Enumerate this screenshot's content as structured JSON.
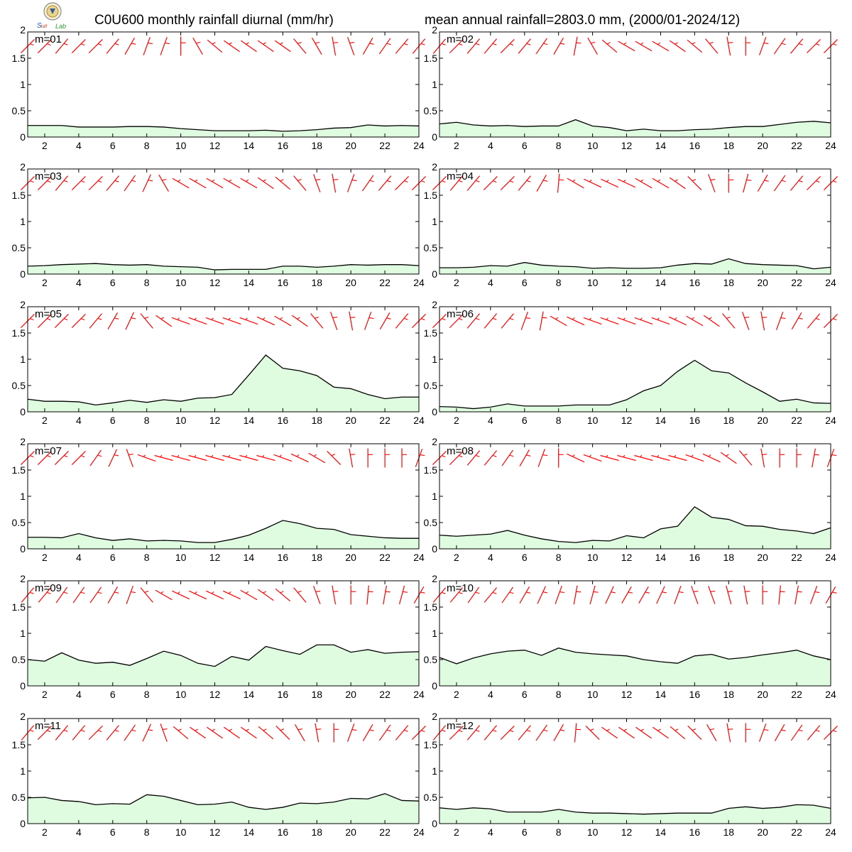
{
  "header": {
    "title_left": "C0U600 monthly rainfall diurnal (mm/hr)",
    "title_right": "mean annual rainfall=2803.0 mm, (2000/01-2024/12)",
    "logo_text": "Lab"
  },
  "colors": {
    "fill": "#e0fce0",
    "line": "#000000",
    "wind": "#ff0000",
    "frame": "#000000"
  },
  "chart_data": {
    "type": "area",
    "x": [
      1,
      2,
      3,
      4,
      5,
      6,
      7,
      8,
      9,
      10,
      11,
      12,
      13,
      14,
      15,
      16,
      17,
      18,
      19,
      20,
      21,
      22,
      23,
      24
    ],
    "x_ticks": [
      2,
      4,
      6,
      8,
      10,
      12,
      14,
      16,
      18,
      20,
      22,
      24
    ],
    "y_ticks": [
      0,
      0.5,
      1,
      1.5,
      2
    ],
    "y_tick_labels": [
      "0",
      "0.5",
      "1",
      "1.5",
      "2"
    ],
    "ylim": [
      0,
      2
    ],
    "xlim": [
      1,
      24
    ],
    "panels": [
      {
        "label": "m=01",
        "values": [
          0.22,
          0.22,
          0.22,
          0.19,
          0.19,
          0.19,
          0.2,
          0.2,
          0.19,
          0.16,
          0.14,
          0.12,
          0.12,
          0.12,
          0.13,
          0.11,
          0.12,
          0.14,
          0.17,
          0.18,
          0.23,
          0.21,
          0.22,
          0.21
        ],
        "wind_angles": [
          -45,
          -45,
          -40,
          -45,
          -45,
          -40,
          -30,
          -20,
          -20,
          0,
          30,
          50,
          55,
          55,
          55,
          55,
          40,
          30,
          10,
          20,
          -30,
          -35,
          -40,
          -40
        ]
      },
      {
        "label": "m=02",
        "values": [
          0.25,
          0.28,
          0.23,
          0.21,
          0.22,
          0.2,
          0.21,
          0.21,
          0.33,
          0.21,
          0.18,
          0.12,
          0.15,
          0.12,
          0.12,
          0.14,
          0.15,
          0.18,
          0.2,
          0.2,
          0.24,
          0.28,
          0.3,
          0.27
        ],
        "wind_angles": [
          -40,
          -45,
          -40,
          -40,
          -45,
          -40,
          -35,
          -30,
          -10,
          30,
          50,
          60,
          60,
          60,
          55,
          50,
          40,
          10,
          0,
          -20,
          -35,
          -40,
          -45,
          -45
        ]
      },
      {
        "label": "m=03",
        "values": [
          0.15,
          0.16,
          0.18,
          0.19,
          0.2,
          0.18,
          0.17,
          0.18,
          0.15,
          0.14,
          0.13,
          0.08,
          0.09,
          0.09,
          0.09,
          0.15,
          0.15,
          0.13,
          0.15,
          0.18,
          0.17,
          0.18,
          0.18,
          0.16
        ],
        "wind_angles": [
          -45,
          -45,
          -40,
          -45,
          -45,
          -40,
          -35,
          -25,
          30,
          60,
          60,
          60,
          60,
          60,
          55,
          50,
          40,
          20,
          10,
          -20,
          -35,
          -40,
          -45,
          -45
        ]
      },
      {
        "label": "m=04",
        "values": [
          0.12,
          0.12,
          0.13,
          0.16,
          0.15,
          0.22,
          0.17,
          0.15,
          0.14,
          0.11,
          0.12,
          0.11,
          0.11,
          0.12,
          0.17,
          0.2,
          0.19,
          0.29,
          0.2,
          0.18,
          0.17,
          0.16,
          0.1,
          0.13
        ],
        "wind_angles": [
          -45,
          -40,
          -40,
          -45,
          -45,
          -40,
          -30,
          -5,
          60,
          65,
          65,
          65,
          60,
          60,
          55,
          45,
          20,
          0,
          -15,
          -30,
          -35,
          -40,
          -45,
          -45
        ]
      },
      {
        "label": "m=05",
        "values": [
          0.24,
          0.2,
          0.2,
          0.19,
          0.13,
          0.17,
          0.22,
          0.18,
          0.23,
          0.2,
          0.26,
          0.27,
          0.33,
          0.7,
          1.08,
          0.83,
          0.78,
          0.69,
          0.47,
          0.44,
          0.33,
          0.25,
          0.28,
          0.28
        ],
        "wind_angles": [
          -45,
          -45,
          -45,
          -45,
          -40,
          -30,
          -25,
          40,
          55,
          70,
          70,
          70,
          70,
          70,
          65,
          60,
          55,
          40,
          20,
          10,
          -20,
          -30,
          -40,
          -45
        ]
      },
      {
        "label": "m=06",
        "values": [
          0.1,
          0.09,
          0.06,
          0.09,
          0.15,
          0.11,
          0.11,
          0.11,
          0.13,
          0.13,
          0.13,
          0.23,
          0.4,
          0.5,
          0.77,
          0.98,
          0.78,
          0.74,
          0.55,
          0.38,
          0.2,
          0.24,
          0.17,
          0.16
        ],
        "wind_angles": [
          -45,
          -45,
          -40,
          -40,
          -40,
          -20,
          -10,
          60,
          65,
          70,
          70,
          70,
          70,
          70,
          65,
          60,
          55,
          40,
          20,
          10,
          -20,
          -30,
          -40,
          -45
        ]
      },
      {
        "label": "m=07",
        "values": [
          0.22,
          0.22,
          0.21,
          0.29,
          0.21,
          0.16,
          0.19,
          0.15,
          0.16,
          0.15,
          0.12,
          0.12,
          0.18,
          0.26,
          0.39,
          0.54,
          0.48,
          0.39,
          0.37,
          0.27,
          0.24,
          0.21,
          0.2,
          0.2
        ],
        "wind_angles": [
          -45,
          -45,
          -45,
          -45,
          -35,
          -25,
          20,
          70,
          75,
          75,
          75,
          75,
          75,
          75,
          75,
          70,
          65,
          60,
          45,
          10,
          0,
          0,
          0,
          -20
        ]
      },
      {
        "label": "m=08",
        "values": [
          0.26,
          0.24,
          0.26,
          0.28,
          0.35,
          0.26,
          0.19,
          0.14,
          0.12,
          0.16,
          0.15,
          0.25,
          0.21,
          0.38,
          0.43,
          0.8,
          0.6,
          0.56,
          0.44,
          0.43,
          0.37,
          0.34,
          0.29,
          0.4
        ],
        "wind_angles": [
          -45,
          -45,
          -40,
          -40,
          -35,
          -30,
          -20,
          0,
          65,
          70,
          75,
          75,
          75,
          75,
          75,
          70,
          65,
          55,
          40,
          10,
          0,
          0,
          -10,
          -20
        ]
      },
      {
        "label": "m=09",
        "values": [
          0.5,
          0.47,
          0.63,
          0.49,
          0.43,
          0.45,
          0.39,
          0.52,
          0.66,
          0.58,
          0.43,
          0.37,
          0.56,
          0.49,
          0.75,
          0.67,
          0.6,
          0.78,
          0.78,
          0.64,
          0.69,
          0.62,
          0.64,
          0.65
        ],
        "wind_angles": [
          -40,
          -40,
          -35,
          -35,
          -35,
          -30,
          -20,
          40,
          60,
          65,
          65,
          65,
          65,
          60,
          55,
          50,
          40,
          20,
          10,
          0,
          -5,
          -10,
          -15,
          -30
        ]
      },
      {
        "label": "m=10",
        "values": [
          0.54,
          0.42,
          0.53,
          0.61,
          0.66,
          0.68,
          0.58,
          0.72,
          0.64,
          0.61,
          0.59,
          0.57,
          0.5,
          0.46,
          0.43,
          0.57,
          0.6,
          0.51,
          0.54,
          0.59,
          0.63,
          0.68,
          0.57,
          0.5
        ],
        "wind_angles": [
          -40,
          -40,
          -35,
          -40,
          -35,
          -30,
          -25,
          -20,
          -10,
          -15,
          -25,
          -30,
          -30,
          -25,
          -20,
          20,
          20,
          15,
          10,
          0,
          -5,
          -10,
          -20,
          -30
        ]
      },
      {
        "label": "m=11",
        "values": [
          0.49,
          0.5,
          0.44,
          0.42,
          0.36,
          0.38,
          0.37,
          0.55,
          0.52,
          0.44,
          0.36,
          0.37,
          0.41,
          0.31,
          0.27,
          0.31,
          0.39,
          0.38,
          0.41,
          0.48,
          0.47,
          0.57,
          0.44,
          0.43
        ],
        "wind_angles": [
          -40,
          -45,
          -40,
          -40,
          -45,
          -40,
          -35,
          -25,
          20,
          50,
          55,
          55,
          55,
          55,
          50,
          45,
          30,
          10,
          0,
          -20,
          -30,
          -35,
          -40,
          -45
        ]
      },
      {
        "label": "m=12",
        "values": [
          0.3,
          0.27,
          0.3,
          0.28,
          0.22,
          0.22,
          0.22,
          0.27,
          0.22,
          0.2,
          0.2,
          0.19,
          0.18,
          0.19,
          0.2,
          0.2,
          0.2,
          0.29,
          0.32,
          0.29,
          0.31,
          0.36,
          0.35,
          0.29
        ],
        "wind_angles": [
          -40,
          -45,
          -40,
          -40,
          -45,
          -40,
          -35,
          -30,
          -5,
          45,
          55,
          55,
          55,
          55,
          50,
          45,
          30,
          10,
          0,
          -20,
          -30,
          -35,
          -40,
          -45
        ]
      }
    ]
  }
}
